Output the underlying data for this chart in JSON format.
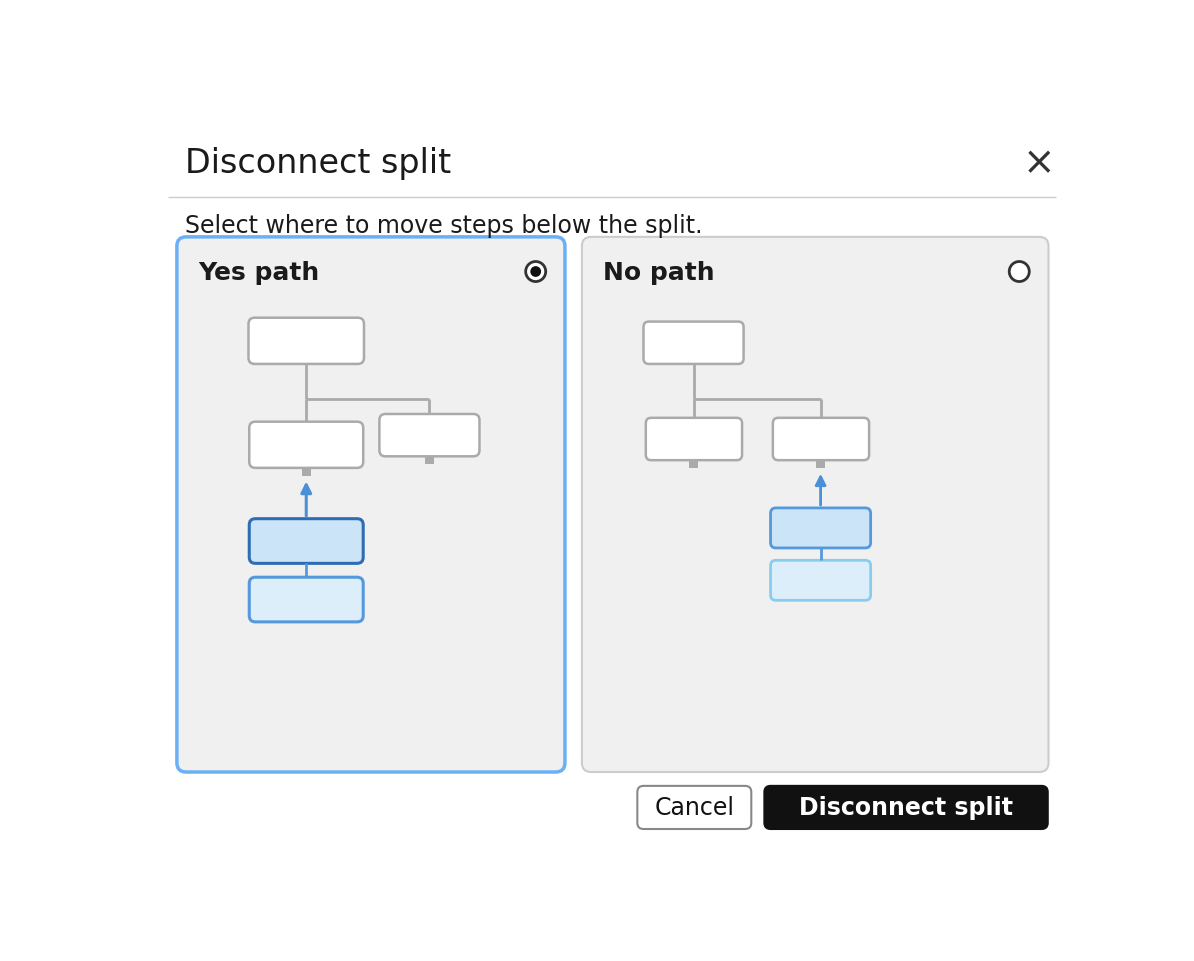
{
  "title": "Disconnect split",
  "subtitle": "Select where to move steps below the split.",
  "close_symbol": "×",
  "left_panel_title": "Yes path",
  "right_panel_title": "No path",
  "cancel_btn": "Cancel",
  "ok_btn": "Disconnect split",
  "bg_color": "#ffffff",
  "panel_bg": "#f0f0f0",
  "left_border_color": "#6ab0f5",
  "right_border_color": "#cccccc",
  "box_border_gray": "#aaaaaa",
  "box_fill_white": "#ffffff",
  "box_fill_blue1": "#cce4f7",
  "box_fill_blue2": "#ddeefb",
  "box_border_blue1": "#2e6db4",
  "box_border_blue2": "#5599dd",
  "arrow_blue": "#4a90d9",
  "connector_gray": "#aaaaaa",
  "nub_color": "#aaaaaa",
  "title_fontsize": 24,
  "subtitle_fontsize": 17,
  "panel_title_fontsize": 18,
  "btn_fontsize": 17,
  "separator_color": "#cccccc"
}
